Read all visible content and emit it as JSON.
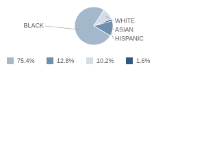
{
  "chart_data": {
    "type": "pie",
    "categories": [
      "BLACK",
      "HISPANIC",
      "WHITE",
      "ASIAN"
    ],
    "values": [
      75.4,
      12.8,
      10.2,
      1.6
    ],
    "value_labels": [
      "75.4%",
      "12.8%",
      "10.2%",
      "1.6%"
    ],
    "colors": [
      "#a4b8cc",
      "#6e8fae",
      "#d4dde7",
      "#2f5a7e"
    ]
  }
}
